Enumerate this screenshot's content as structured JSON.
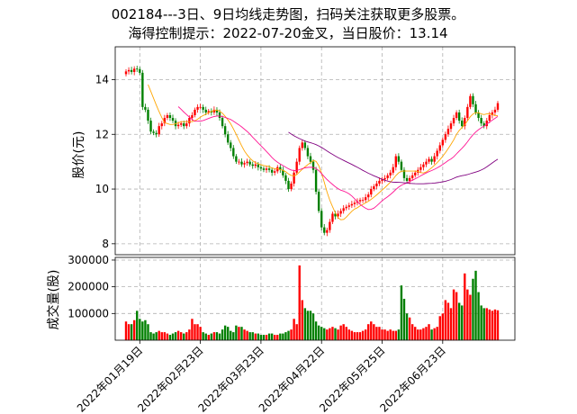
{
  "title_line1": "002184---3日、9日均线走势图，扫码关注获取更多股票。",
  "title_line2": "海得控制提示：2022-07-20金叉，当日股价：13.14",
  "colors": {
    "up": "#ff0000",
    "down": "#008000",
    "ma3": "#ffa500",
    "ma9": "#ff1493",
    "ma_long": "#800080"
  },
  "chart_data": [
    {
      "type": "candlestick",
      "ylabel": "股价(元)",
      "ylim": [
        7.6,
        15.2
      ],
      "yticks": [
        "8",
        "10",
        "12",
        "14"
      ],
      "lines": [
        "MA3",
        "MA9",
        "MA-long"
      ],
      "x_tick_labels": [
        "2022年01月19日",
        "2022年02月23日",
        "2022年03月23日",
        "2022年04月22日",
        "2022年05月25日",
        "2022年06月23日"
      ],
      "closes": [
        14.3,
        14.35,
        14.28,
        14.4,
        14.38,
        14.25,
        13.0,
        12.9,
        12.5,
        12.1,
        12.05,
        12.0,
        12.3,
        12.4,
        12.6,
        12.7,
        12.6,
        12.5,
        12.3,
        12.35,
        12.4,
        12.3,
        12.4,
        12.6,
        12.7,
        12.9,
        13.0,
        13.0,
        12.9,
        12.8,
        12.85,
        12.8,
        12.9,
        12.8,
        12.6,
        12.3,
        12.0,
        11.7,
        11.5,
        11.2,
        11.0,
        11.0,
        10.9,
        10.95,
        11.0,
        10.9,
        10.85,
        10.9,
        10.8,
        10.75,
        10.7,
        10.75,
        10.7,
        10.6,
        10.65,
        10.8,
        10.7,
        10.5,
        10.3,
        10.0,
        10.2,
        10.6,
        11.0,
        11.5,
        11.7,
        11.5,
        11.2,
        11.0,
        10.7,
        9.9,
        9.2,
        8.6,
        8.4,
        8.5,
        8.8,
        9.1,
        9.0,
        9.1,
        9.2,
        9.3,
        9.35,
        9.4,
        9.45,
        9.5,
        9.55,
        9.6,
        9.6,
        9.7,
        9.8,
        10.0,
        10.1,
        10.2,
        10.3,
        10.35,
        10.4,
        10.5,
        10.6,
        10.8,
        11.2,
        11.0,
        10.7,
        10.4,
        10.3,
        10.4,
        10.5,
        10.6,
        10.7,
        10.8,
        10.9,
        11.0,
        11.1,
        11.0,
        11.2,
        11.4,
        11.6,
        11.8,
        12.0,
        12.2,
        12.4,
        12.6,
        12.8,
        12.5,
        12.3,
        12.6,
        13.0,
        13.4,
        13.1,
        12.8,
        12.6,
        12.4,
        12.3,
        12.5,
        12.7,
        12.8,
        12.9,
        13.14
      ],
      "volume": {
        "ylabel": "成交量(股)",
        "ylim": [
          0,
          310000
        ],
        "yticks": [
          "100000",
          "200000",
          "300000"
        ],
        "values": [
          70000,
          60000,
          60000,
          75000,
          110000,
          80000,
          70000,
          75000,
          60000,
          30000,
          25000,
          30000,
          35000,
          30000,
          30000,
          25000,
          20000,
          25000,
          30000,
          35000,
          30000,
          25000,
          30000,
          40000,
          80000,
          60000,
          60000,
          50000,
          30000,
          25000,
          20000,
          25000,
          30000,
          30000,
          25000,
          40000,
          55000,
          50000,
          35000,
          30000,
          55000,
          50000,
          50000,
          40000,
          35000,
          30000,
          30000,
          25000,
          25000,
          20000,
          20000,
          20000,
          25000,
          25000,
          20000,
          20000,
          25000,
          25000,
          30000,
          35000,
          40000,
          80000,
          60000,
          280000,
          150000,
          120000,
          110000,
          110000,
          100000,
          70000,
          55000,
          50000,
          45000,
          40000,
          45000,
          50000,
          45000,
          40000,
          55000,
          60000,
          50000,
          40000,
          35000,
          30000,
          30000,
          30000,
          35000,
          40000,
          60000,
          70000,
          60000,
          50000,
          50000,
          40000,
          40000,
          35000,
          40000,
          35000,
          35000,
          40000,
          205000,
          155000,
          100000,
          85000,
          60000,
          50000,
          40000,
          40000,
          45000,
          50000,
          60000,
          40000,
          45000,
          50000,
          90000,
          100000,
          150000,
          140000,
          120000,
          190000,
          180000,
          140000,
          130000,
          250000,
          190000,
          170000,
          230000,
          260000,
          180000,
          130000,
          120000,
          120000,
          115000,
          110000,
          115000,
          112000
        ]
      }
    }
  ]
}
